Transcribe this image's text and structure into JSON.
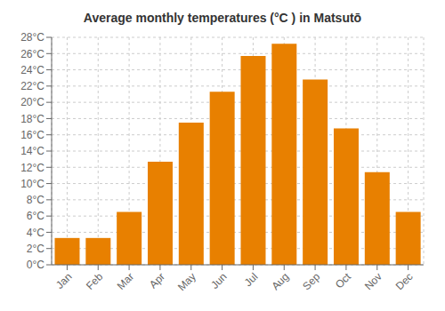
{
  "chart_data": {
    "type": "bar",
    "title": "Average monthly temperatures (°C ) in Matsutō",
    "categories": [
      "Jan",
      "Feb",
      "Mar",
      "Apr",
      "May",
      "Jun",
      "Jul",
      "Aug",
      "Sep",
      "Oct",
      "Nov",
      "Dec"
    ],
    "values": [
      3.3,
      3.3,
      6.5,
      12.7,
      17.5,
      21.3,
      25.7,
      27.2,
      22.8,
      16.8,
      11.4,
      6.5
    ],
    "color": "#E88000",
    "ylim": [
      0,
      28
    ],
    "yticks": [
      {
        "value": 0,
        "label": "0°C"
      },
      {
        "value": 2,
        "label": "2°C"
      },
      {
        "value": 4,
        "label": "4°C"
      },
      {
        "value": 6,
        "label": "6°C"
      },
      {
        "value": 8,
        "label": "8°C"
      },
      {
        "value": 10,
        "label": "10°C"
      },
      {
        "value": 12,
        "label": "12°C"
      },
      {
        "value": 14,
        "label": "14°C"
      },
      {
        "value": 16,
        "label": "16°C"
      },
      {
        "value": 18,
        "label": "18°C"
      },
      {
        "value": 20,
        "label": "20°C"
      },
      {
        "value": 22,
        "label": "22°C"
      },
      {
        "value": 24,
        "label": "24°C"
      },
      {
        "value": 26,
        "label": "26°C"
      },
      {
        "value": 28,
        "label": "28°C"
      }
    ],
    "grid": true
  }
}
